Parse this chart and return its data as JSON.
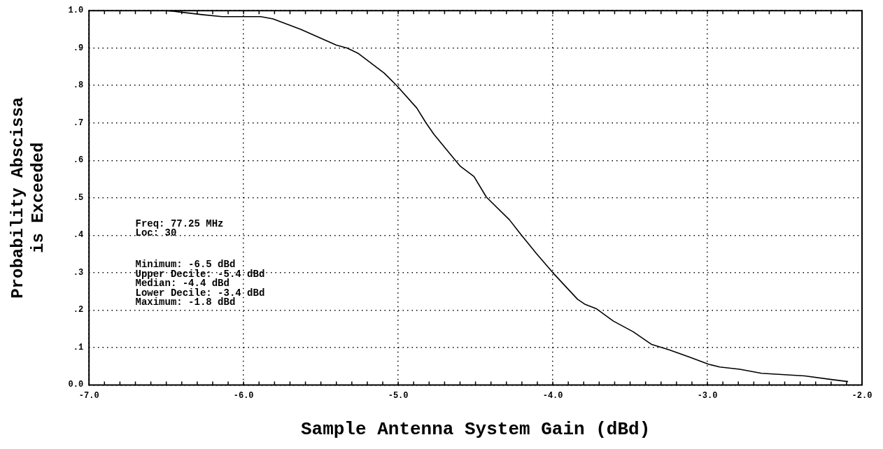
{
  "chart_data": {
    "type": "line",
    "xlabel": "Sample Antenna System Gain (dBd)",
    "ylabel": "Probability Abscissa\nis Exceeded",
    "xlim": [
      -7,
      -2
    ],
    "ylim": [
      0,
      1
    ],
    "xticks": [
      {
        "value": -7,
        "label": "-7.0"
      },
      {
        "value": -6,
        "label": "-6.0"
      },
      {
        "value": -5,
        "label": "-5.0"
      },
      {
        "value": -4,
        "label": "-4.0"
      },
      {
        "value": -3,
        "label": "-3.0"
      },
      {
        "value": -2,
        "label": "-2.0"
      }
    ],
    "yticks": [
      {
        "value": 0,
        "label": "0.0"
      },
      {
        "value": 0.1,
        "label": ".1"
      },
      {
        "value": 0.2,
        "label": ".2"
      },
      {
        "value": 0.3,
        "label": ".3"
      },
      {
        "value": 0.4,
        "label": ".4"
      },
      {
        "value": 0.5,
        "label": ".5"
      },
      {
        "value": 0.6,
        "label": ".6"
      },
      {
        "value": 0.7,
        "label": ".7"
      },
      {
        "value": 0.8,
        "label": ".8"
      },
      {
        "value": 0.9,
        "label": ".9"
      },
      {
        "value": 1,
        "label": "1.0"
      }
    ],
    "grid": true,
    "legend": false,
    "marker": "none",
    "line_style": "solid",
    "annotations": [
      "Freq: 77.25 MHz",
      "Loc: 30",
      "Minimum: -6.5 dBd",
      "Upper Decile: -5.4 dBd",
      "Median: -4.4 dBd",
      "Lower Decile: -3.4 dBd",
      "Maximum: -1.8 dBd"
    ],
    "series": [
      {
        "color": "#000000",
        "x": [
          -6.5,
          -6.45,
          -6.26,
          -6.14,
          -5.89,
          -5.81,
          -5.63,
          -5.4,
          -5.33,
          -5.26,
          -5.09,
          -5.01,
          -4.88,
          -4.82,
          -4.77,
          -4.65,
          -4.6,
          -4.51,
          -4.43,
          -4.28,
          -4.21,
          -4.11,
          -4.0,
          -3.84,
          -3.79,
          -3.72,
          -3.61,
          -3.48,
          -3.36,
          -3.25,
          -3.12,
          -2.99,
          -2.92,
          -2.79,
          -2.65,
          -2.37,
          -2.19,
          -2.09
        ],
        "values": [
          1.0,
          0.998,
          0.989,
          0.984,
          0.984,
          0.978,
          0.95,
          0.908,
          0.9,
          0.886,
          0.833,
          0.8,
          0.74,
          0.7,
          0.67,
          0.61,
          0.585,
          0.557,
          0.502,
          0.441,
          0.404,
          0.353,
          0.3,
          0.229,
          0.215,
          0.204,
          0.171,
          0.142,
          0.108,
          0.094,
          0.075,
          0.055,
          0.048,
          0.042,
          0.031,
          0.024,
          0.014,
          0.009
        ]
      }
    ]
  }
}
